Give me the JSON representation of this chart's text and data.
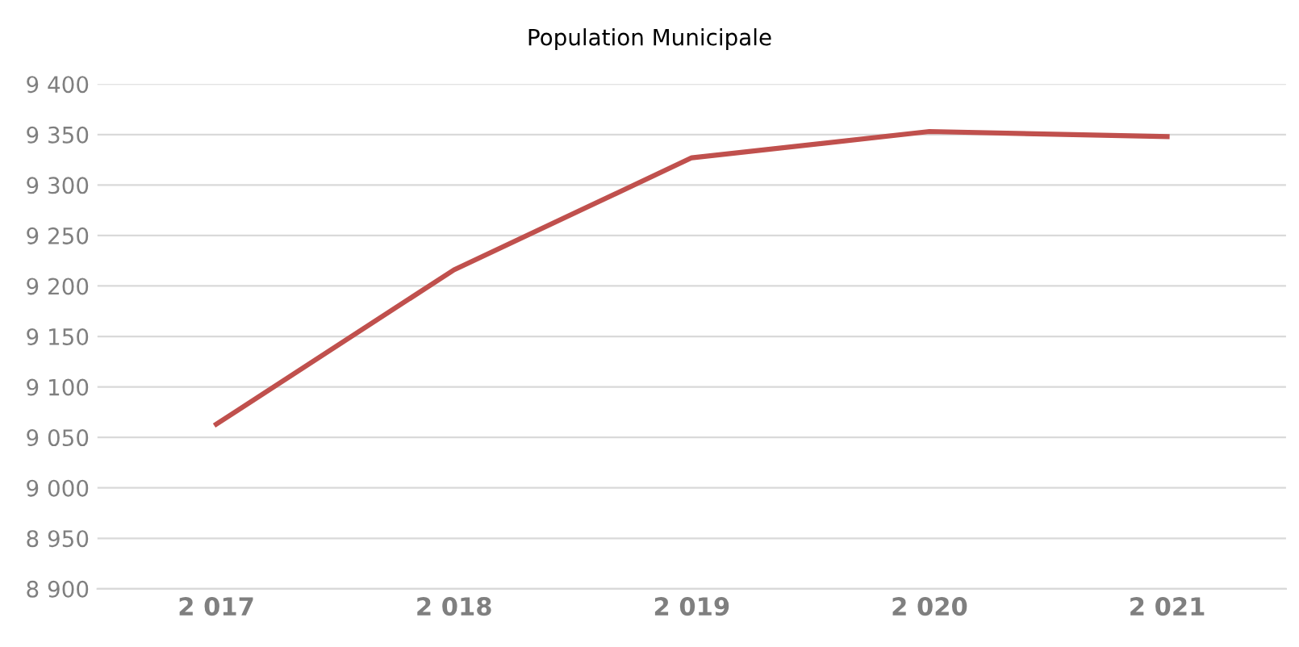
{
  "chart_data": {
    "type": "line",
    "title": "Population Municipale",
    "categories": [
      "2 017",
      "2 018",
      "2 019",
      "2 020",
      "2 021"
    ],
    "series": [
      {
        "color": "#c0504d",
        "values": [
          9063,
          9216,
          9327,
          9353,
          9348
        ]
      }
    ],
    "ylim": [
      8900,
      9400
    ],
    "yticks": [
      {
        "value": 8900,
        "label": "8 900"
      },
      {
        "value": 8950,
        "label": "8 950"
      },
      {
        "value": 9000,
        "label": "9 000"
      },
      {
        "value": 9050,
        "label": "9 050"
      },
      {
        "value": 9100,
        "label": "9 100"
      },
      {
        "value": 9150,
        "label": "9 150"
      },
      {
        "value": 9200,
        "label": "9 200"
      },
      {
        "value": 9250,
        "label": "9 250"
      },
      {
        "value": 9300,
        "label": "9 300"
      },
      {
        "value": 9350,
        "label": "9 350"
      },
      {
        "value": 9400,
        "label": "9 400"
      }
    ],
    "grid": "y",
    "marker": "none",
    "line_style": "solid"
  }
}
